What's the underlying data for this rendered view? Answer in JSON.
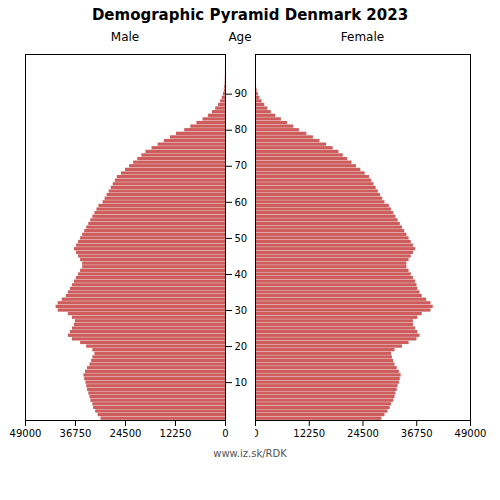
{
  "chart_data": {
    "type": "bar",
    "orientation": "horizontal",
    "title": "Demographic Pyramid Denmark 2023",
    "ylabel": "Age",
    "annotations": [
      "www.iz.sk/RDK"
    ],
    "color": "#cd5c5c",
    "categories": [
      0,
      1,
      2,
      3,
      4,
      5,
      6,
      7,
      8,
      9,
      10,
      11,
      12,
      13,
      14,
      15,
      16,
      17,
      18,
      19,
      20,
      21,
      22,
      23,
      24,
      25,
      26,
      27,
      28,
      29,
      30,
      31,
      32,
      33,
      34,
      35,
      36,
      37,
      38,
      39,
      40,
      41,
      42,
      43,
      44,
      45,
      46,
      47,
      48,
      49,
      50,
      51,
      52,
      53,
      54,
      55,
      56,
      57,
      58,
      59,
      60,
      61,
      62,
      63,
      64,
      65,
      66,
      67,
      68,
      69,
      70,
      71,
      72,
      73,
      74,
      75,
      76,
      77,
      78,
      79,
      80,
      81,
      82,
      83,
      84,
      85,
      86,
      87,
      88,
      89,
      90,
      91,
      92,
      93,
      94,
      95,
      96,
      97,
      98,
      99,
      100
    ],
    "series": [
      {
        "name": "Male",
        "values": [
          30500,
          31200,
          31800,
          32300,
          32500,
          33000,
          33200,
          33500,
          33800,
          34000,
          34200,
          34500,
          34700,
          34300,
          33800,
          33200,
          32800,
          32500,
          32000,
          32500,
          34000,
          35500,
          37500,
          38500,
          38000,
          37500,
          37000,
          36800,
          37500,
          38500,
          41000,
          41500,
          41000,
          40000,
          39000,
          38500,
          38000,
          37500,
          37000,
          36500,
          36000,
          35500,
          35000,
          35000,
          35500,
          36000,
          36500,
          37000,
          36500,
          36000,
          35500,
          35000,
          34500,
          34000,
          33500,
          33000,
          32500,
          32000,
          31500,
          31000,
          30000,
          29500,
          29000,
          28500,
          28000,
          27500,
          27000,
          26500,
          25500,
          24500,
          23500,
          22500,
          21500,
          20500,
          19500,
          18000,
          16500,
          15000,
          13500,
          12000,
          10000,
          8500,
          7000,
          5500,
          4200,
          3200,
          2400,
          1700,
          1200,
          800,
          500,
          300,
          200,
          100,
          80,
          50,
          30,
          20,
          10,
          5,
          3
        ]
      },
      {
        "name": "Female",
        "values": [
          28800,
          29500,
          30200,
          30700,
          31000,
          31500,
          31800,
          32000,
          32300,
          32500,
          32800,
          33000,
          33200,
          32800,
          32300,
          31800,
          31500,
          31200,
          31000,
          31800,
          33500,
          35000,
          36800,
          37500,
          37000,
          36500,
          36000,
          36000,
          37000,
          38000,
          40000,
          40500,
          40000,
          39000,
          38000,
          37500,
          37000,
          36800,
          36500,
          36000,
          35500,
          35000,
          34500,
          34500,
          35000,
          35500,
          36000,
          36500,
          36000,
          35500,
          35000,
          34500,
          34000,
          33500,
          33000,
          32500,
          32000,
          31500,
          31000,
          30500,
          29500,
          29000,
          28500,
          28000,
          27500,
          27000,
          26500,
          26000,
          25000,
          24000,
          23000,
          22000,
          21000,
          20000,
          19000,
          17700,
          16200,
          14700,
          13200,
          11700,
          10000,
          8700,
          7300,
          5900,
          4600,
          3600,
          2800,
          2100,
          1500,
          1000,
          650,
          400,
          250,
          150,
          100,
          60,
          35,
          20,
          10,
          5,
          3
        ]
      }
    ],
    "xlim": [
      0,
      49000
    ],
    "xticks": [
      0,
      12250,
      24500,
      36750,
      49000
    ],
    "ylim": [
      -0.5,
      101
    ],
    "yticks": [
      10,
      20,
      30,
      40,
      50,
      60,
      70,
      80,
      90
    ]
  }
}
